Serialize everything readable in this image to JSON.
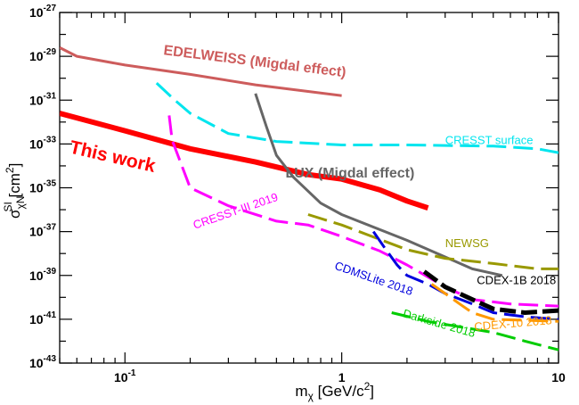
{
  "chart_data": {
    "type": "line",
    "xlabel": "m_χ [GeV/c²]",
    "ylabel": "σ_χN^SI [cm²]",
    "x_scale": "log",
    "y_scale": "log",
    "xlim": [
      0.05,
      10
    ],
    "ylim": [
      1e-43,
      1e-27
    ],
    "x_ticks": [
      {
        "value": 0.1,
        "label": "10",
        "exp": "-1"
      },
      {
        "value": 1,
        "label": "1",
        "exp": ""
      },
      {
        "value": 10,
        "label": "10",
        "exp": ""
      }
    ],
    "y_ticks": [
      {
        "value": 1e-27,
        "label": "10",
        "exp": "-27"
      },
      {
        "value": 1e-29,
        "label": "10",
        "exp": "-29"
      },
      {
        "value": 1e-31,
        "label": "10",
        "exp": "-31"
      },
      {
        "value": 1e-33,
        "label": "10",
        "exp": "-33"
      },
      {
        "value": 1e-35,
        "label": "10",
        "exp": "-35"
      },
      {
        "value": 1e-37,
        "label": "10",
        "exp": "-37"
      },
      {
        "value": 1e-39,
        "label": "10",
        "exp": "-39"
      },
      {
        "value": 1e-41,
        "label": "10",
        "exp": "-41"
      },
      {
        "value": 1e-43,
        "label": "10",
        "exp": "-43"
      }
    ],
    "grid": false,
    "series": [
      {
        "name": "EDELWEISS (Migdal effect)",
        "color": "#cd5c5c",
        "style": "solid",
        "width": 3,
        "points": [
          [
            0.05,
            2.5e-29
          ],
          [
            0.06,
            1e-29
          ],
          [
            0.1,
            4e-30
          ],
          [
            0.2,
            1.5e-30
          ],
          [
            0.4,
            5e-31
          ],
          [
            0.7,
            2.5e-31
          ],
          [
            1.0,
            1.6e-31
          ]
        ],
        "label": {
          "x": 0.15,
          "y": 1.2e-29,
          "size": 16,
          "rotate": 7,
          "weight": "bold"
        }
      },
      {
        "name": "This work",
        "color": "#ff0000",
        "style": "solid",
        "width": 6,
        "points": [
          [
            0.05,
            2.5e-32
          ],
          [
            0.1,
            4e-33
          ],
          [
            0.2,
            6e-34
          ],
          [
            0.4,
            1.5e-34
          ],
          [
            0.7,
            4e-35
          ],
          [
            1.0,
            2.5e-35
          ],
          [
            1.5,
            8e-36
          ],
          [
            2.0,
            2.5e-36
          ],
          [
            2.5,
            1.2e-36
          ]
        ],
        "label": {
          "x": 0.055,
          "y": 4e-34,
          "size": 21,
          "rotate": 13,
          "weight": "bold"
        }
      },
      {
        "name": "CRESST surface",
        "color": "#00e5ee",
        "style": "dashed",
        "width": 3,
        "points": [
          [
            0.14,
            6e-31
          ],
          [
            0.17,
            1e-31
          ],
          [
            0.2,
            2.5e-32
          ],
          [
            0.3,
            3e-33
          ],
          [
            0.5,
            1.3e-33
          ],
          [
            1,
            9e-34
          ],
          [
            2,
            9e-34
          ],
          [
            5,
            8e-34
          ],
          [
            8,
            6e-34
          ],
          [
            10,
            4e-34
          ]
        ],
        "label": {
          "x": 3.0,
          "y": 1e-33,
          "size": 13,
          "rotate": 0,
          "weight": "normal"
        }
      },
      {
        "name": "LUX (Migdal effect)",
        "color": "#666666",
        "style": "solid",
        "width": 3,
        "points": [
          [
            0.4,
            2e-31
          ],
          [
            0.45,
            6e-33
          ],
          [
            0.5,
            3e-34
          ],
          [
            0.6,
            3e-35
          ],
          [
            0.8,
            2e-36
          ],
          [
            1.0,
            6e-37
          ],
          [
            2.0,
            4e-38
          ],
          [
            3.0,
            7e-39
          ],
          [
            4.0,
            2e-39
          ],
          [
            5.5,
            1e-39
          ]
        ],
        "label": {
          "x": 0.55,
          "y": 3e-35,
          "size": 16,
          "rotate": 0,
          "weight": "bold"
        }
      },
      {
        "name": "CRESST-III 2019",
        "color": "#ff00ff",
        "style": "dashed",
        "width": 3,
        "points": [
          [
            0.16,
            2e-32
          ],
          [
            0.165,
            1.5e-33
          ],
          [
            0.2,
            1e-35
          ],
          [
            0.3,
            1.5e-36
          ],
          [
            0.5,
            3e-37
          ],
          [
            0.7,
            2e-37
          ],
          [
            1.0,
            6e-38
          ],
          [
            1.5,
            1.3e-38
          ],
          [
            2.0,
            3e-39
          ],
          [
            3.0,
            3e-40
          ],
          [
            4.0,
            8e-41
          ],
          [
            6.0,
            5e-41
          ],
          [
            10,
            4e-41
          ]
        ],
        "label": {
          "x": 0.21,
          "y": 1.3e-37,
          "size": 13,
          "rotate": -19,
          "weight": "normal"
        }
      },
      {
        "name": "NEWSG",
        "color": "#999900",
        "style": "dashed",
        "width": 3,
        "points": [
          [
            0.7,
            6e-37
          ],
          [
            1.0,
            2e-37
          ],
          [
            2.0,
            1.5e-38
          ],
          [
            3.0,
            6e-39
          ],
          [
            5.0,
            3.5e-39
          ],
          [
            8.0,
            2e-39
          ],
          [
            10,
            2e-39
          ]
        ],
        "label": {
          "x": 3.0,
          "y": 2e-38,
          "size": 13,
          "rotate": 0,
          "weight": "normal"
        }
      },
      {
        "name": "CDMSLite 2018",
        "color": "#0000dd",
        "style": "dashed",
        "width": 3,
        "points": [
          [
            1.4,
            1e-37
          ],
          [
            1.6,
            1.5e-38
          ],
          [
            1.8,
            3e-39
          ],
          [
            2.0,
            1e-39
          ],
          [
            2.5,
            4e-40
          ],
          [
            3.0,
            1.5e-40
          ],
          [
            4.0,
            5e-41
          ],
          [
            5.0,
            2e-41
          ],
          [
            7.0,
            1.3e-41
          ],
          [
            10,
            1e-41
          ]
        ],
        "label": {
          "x": 0.92,
          "y": 2e-39,
          "size": 13,
          "rotate": 19,
          "weight": "normal"
        }
      },
      {
        "name": "CDEX-1B 2018",
        "color": "#000000",
        "style": "dashed",
        "width": 5,
        "points": [
          [
            2.4,
            1.5e-39
          ],
          [
            3.0,
            3e-40
          ],
          [
            4.0,
            8e-41
          ],
          [
            5.0,
            3e-41
          ],
          [
            7.0,
            2e-41
          ],
          [
            10,
            2.5e-41
          ]
        ],
        "label": {
          "x": 4.2,
          "y": 4e-40,
          "size": 13,
          "rotate": 0,
          "weight": "normal"
        }
      },
      {
        "name": "CDEX-10 2018",
        "color": "#ff9900",
        "style": "dashed",
        "width": 3,
        "points": [
          [
            2.6,
            4e-40
          ],
          [
            3.0,
            1.5e-40
          ],
          [
            3.5,
            5e-41
          ],
          [
            4.0,
            2e-41
          ],
          [
            5.0,
            1e-41
          ],
          [
            7.0,
            9e-42
          ],
          [
            10,
            8e-42
          ]
        ],
        "label": {
          "x": 4.1,
          "y": 3e-42,
          "size": 13,
          "rotate": -5,
          "weight": "normal"
        }
      },
      {
        "name": "Darkside 2018",
        "color": "#00cc00",
        "style": "dashed",
        "width": 3,
        "points": [
          [
            1.7,
            2e-41
          ],
          [
            2.5,
            8e-42
          ],
          [
            3.5,
            4.5e-42
          ],
          [
            5.0,
            2.5e-42
          ],
          [
            7.0,
            1e-42
          ],
          [
            10,
            4e-43
          ]
        ],
        "label": {
          "x": 1.9,
          "y": 1.3e-41,
          "size": 13,
          "rotate": 16,
          "weight": "normal"
        }
      }
    ]
  }
}
